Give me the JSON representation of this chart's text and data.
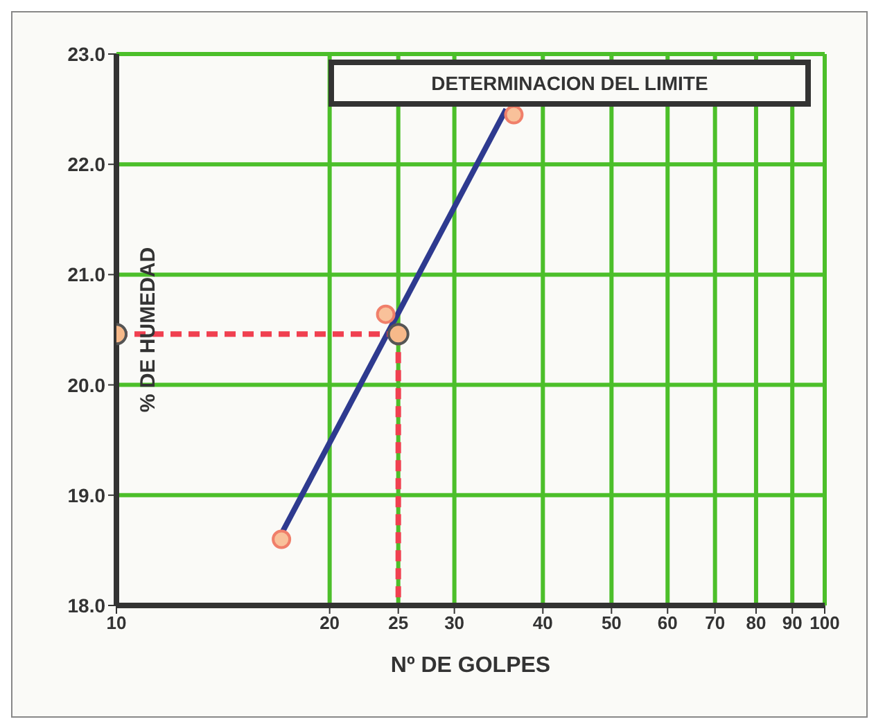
{
  "chart_data": {
    "type": "scatter",
    "title": "DETERMINACION DEL LIMITE",
    "xlabel": "Nº DE GOLPES",
    "ylabel": "% DE HUMEDAD",
    "log": "x",
    "xlim": [
      10,
      100
    ],
    "xticks": [
      10,
      20,
      25,
      30,
      40,
      50,
      60,
      70,
      80,
      90,
      100
    ],
    "ylim": [
      18,
      23
    ],
    "yticks": [
      {
        "value": 18,
        "label": "18.0"
      },
      {
        "value": 19,
        "label": "19.0"
      },
      {
        "value": 20,
        "label": "20.0"
      },
      {
        "value": 21,
        "label": "21.0"
      },
      {
        "value": 22,
        "label": "22.0"
      },
      {
        "value": 23,
        "label": "23.0"
      }
    ],
    "grid": true,
    "legend": false,
    "series": [
      {
        "type": "line",
        "color": "#2e3a8f",
        "marker": "none",
        "line_style": "solid",
        "x": [
          17.1,
          35.5
        ],
        "values": [
          18.65,
          22.5
        ]
      },
      {
        "color": "#f07f6a",
        "marker": "circle",
        "x": [
          17.1,
          24,
          36.4
        ],
        "values": [
          18.6,
          20.64,
          22.45
        ]
      },
      {
        "type": "line",
        "color": "#f04050",
        "marker": "circle",
        "line_style": "dashed",
        "x": [
          10,
          25
        ],
        "values": [
          20.46,
          20.46
        ]
      },
      {
        "type": "line",
        "color": "#f04050",
        "marker": "none",
        "line_style": "dashed",
        "x": [
          25,
          25
        ],
        "values": [
          20.46,
          18
        ]
      }
    ]
  }
}
